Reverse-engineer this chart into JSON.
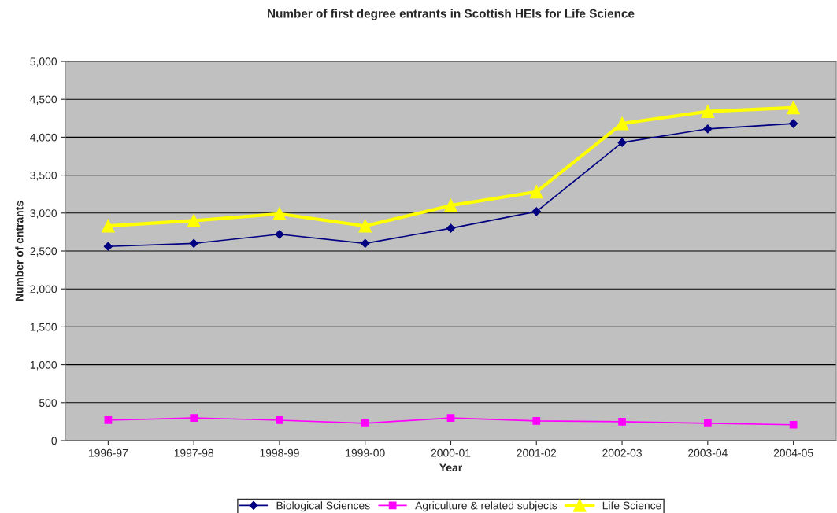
{
  "chart_data": {
    "type": "line",
    "title": "Number of first degree entrants in Scottish HEIs for Life Science",
    "xlabel": "Year",
    "ylabel": "Number of entrants",
    "categories": [
      "1996-97",
      "1997-98",
      "1998-99",
      "1999-00",
      "2000-01",
      "2001-02",
      "2002-03",
      "2003-04",
      "2004-05"
    ],
    "series": [
      {
        "name": "Biological Sciences",
        "color": "#000080",
        "marker": "diamond",
        "values": [
          2560,
          2600,
          2720,
          2600,
          2800,
          3020,
          3930,
          4110,
          4180
        ]
      },
      {
        "name": "Agriculture & related subjects",
        "color": "#ff00ff",
        "marker": "square",
        "values": [
          270,
          300,
          270,
          230,
          300,
          260,
          250,
          230,
          210
        ]
      },
      {
        "name": "Life Science",
        "color": "#ffff00",
        "marker": "triangle",
        "values": [
          2830,
          2900,
          2990,
          2830,
          3100,
          3280,
          4180,
          4340,
          4390
        ]
      }
    ],
    "ylim": [
      0,
      5000
    ],
    "yticks": [
      {
        "value": 0,
        "label": "0"
      },
      {
        "value": 500,
        "label": "500"
      },
      {
        "value": 1000,
        "label": "1,000"
      },
      {
        "value": 1500,
        "label": "1,500"
      },
      {
        "value": 2000,
        "label": "2,000"
      },
      {
        "value": 2500,
        "label": "2,500"
      },
      {
        "value": 3000,
        "label": "3,000"
      },
      {
        "value": 3500,
        "label": "3,500"
      },
      {
        "value": 4000,
        "label": "4,000"
      },
      {
        "value": 4500,
        "label": "4,500"
      },
      {
        "value": 5000,
        "label": "5,000"
      }
    ],
    "grid": "y",
    "legend": "bottom"
  }
}
